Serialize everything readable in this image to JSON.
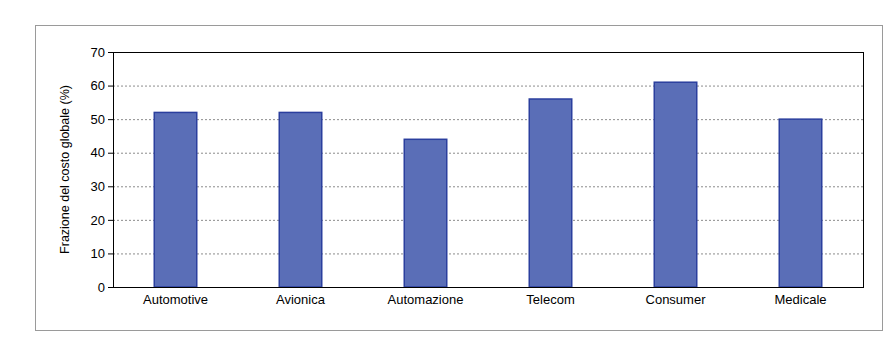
{
  "chart_data": {
    "type": "bar",
    "y_label": "Frazione del costo globale (%)",
    "categories": [
      "Automotive",
      "Avionica",
      "Automazione",
      "Telecom",
      "Consumer",
      "Medicale"
    ],
    "values": [
      52,
      52,
      44,
      56,
      61,
      50
    ],
    "color": "#5a6eb7",
    "ylim": [
      0,
      70
    ],
    "yticks": [
      0,
      10,
      20,
      30,
      40,
      50,
      60,
      70
    ],
    "grid": true
  }
}
